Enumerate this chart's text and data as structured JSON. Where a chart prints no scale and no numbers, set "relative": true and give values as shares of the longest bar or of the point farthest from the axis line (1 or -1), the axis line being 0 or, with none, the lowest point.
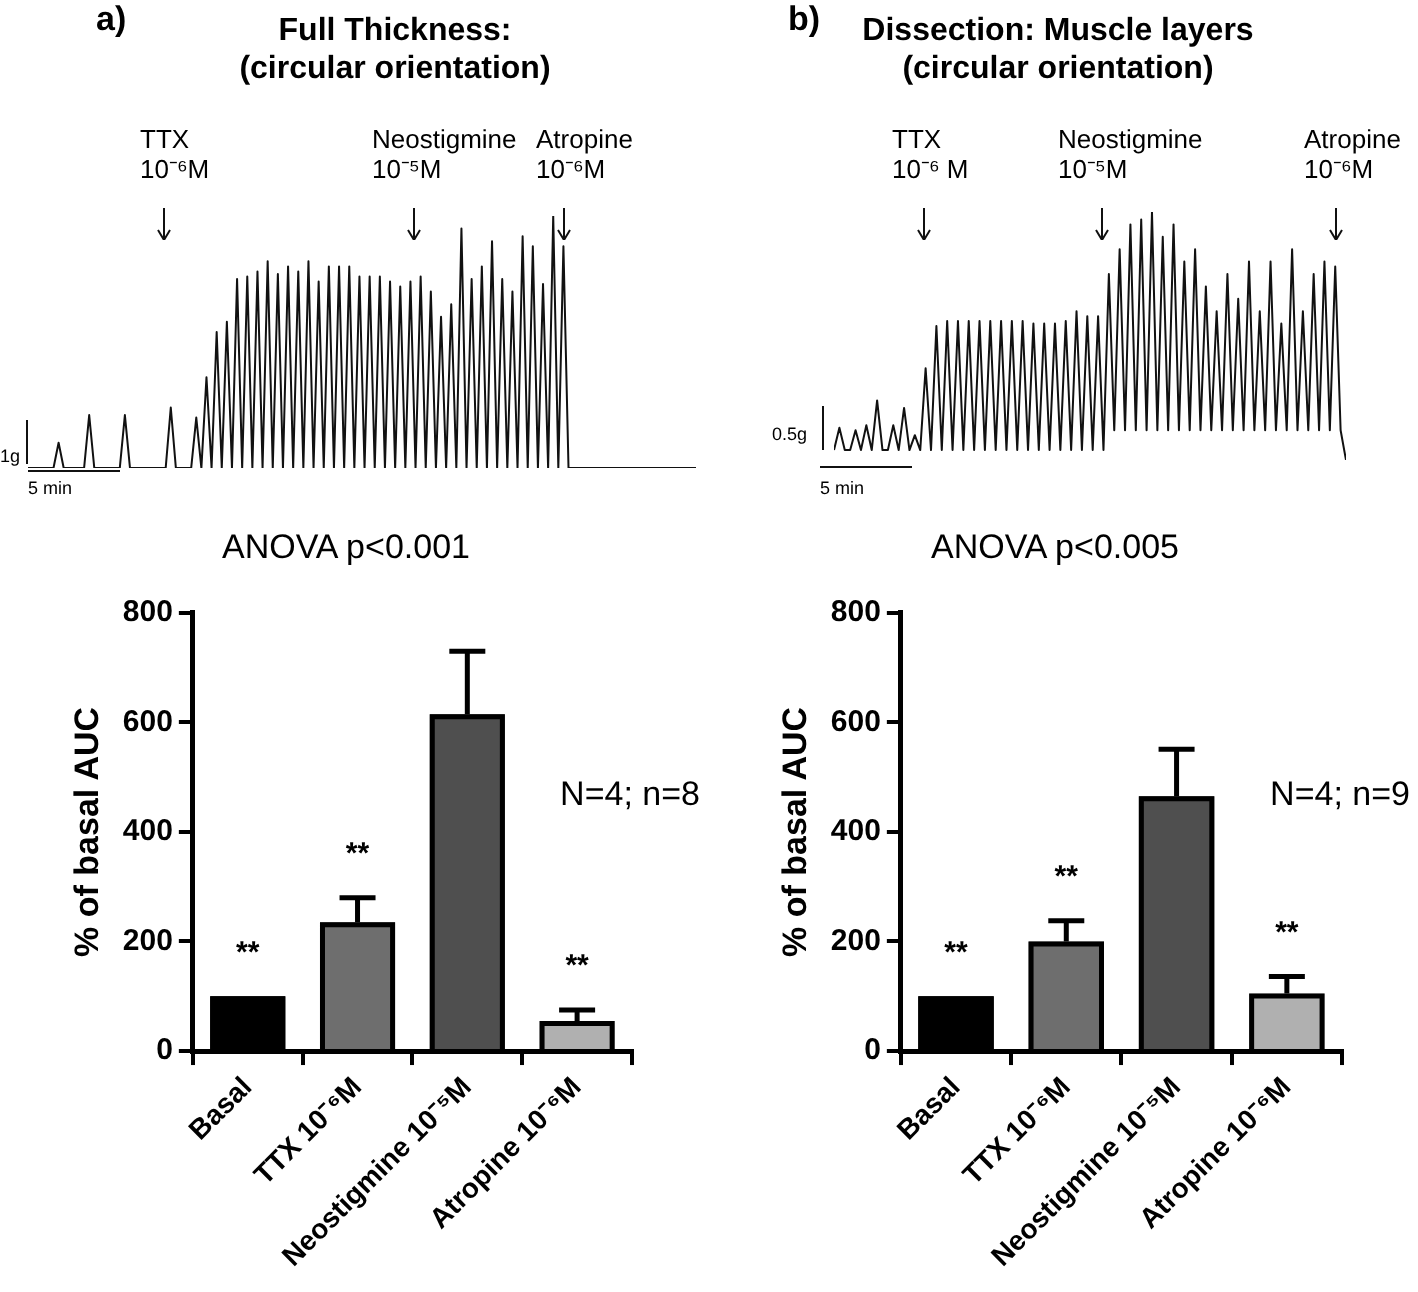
{
  "chart_data": [
    {
      "type": "line",
      "title": "Full Thickness: (circular orientation)",
      "relative": true,
      "tick_labels": false,
      "categories": [
        null,
        null,
        null,
        null,
        null,
        null,
        null,
        null,
        null,
        null,
        null,
        null,
        null,
        null,
        null,
        null,
        null,
        null,
        null,
        null,
        null,
        null,
        null,
        null,
        null,
        null,
        null,
        null,
        null,
        null,
        null,
        null,
        null,
        null,
        null,
        null,
        null,
        null,
        null,
        null,
        null,
        null,
        null,
        null,
        null,
        null,
        null,
        null,
        null,
        null,
        null,
        null,
        null,
        null,
        null,
        null,
        null,
        null,
        null,
        null,
        null,
        null,
        null,
        null,
        null,
        null,
        null,
        null,
        null,
        null,
        null,
        null,
        null,
        null,
        null,
        null,
        null,
        null,
        null,
        null,
        null,
        null,
        null,
        null,
        null,
        null,
        null,
        null,
        null,
        null,
        null,
        null,
        null,
        null,
        null,
        null,
        null,
        null,
        null,
        null,
        null,
        null,
        null,
        null,
        null,
        null,
        null,
        null,
        null,
        null,
        null,
        null,
        null,
        null,
        null,
        null,
        null,
        null,
        null,
        null,
        null,
        null,
        null,
        null,
        null,
        null,
        null,
        null,
        null,
        null,
        null,
        null
      ],
      "series": [
        {
          "color": "#111111",
          "values": [
            0,
            0,
            0,
            0,
            0,
            0,
            0.1,
            0,
            0,
            0,
            0,
            0,
            0.21,
            0,
            0,
            0,
            0,
            0,
            0,
            0.21,
            0,
            0,
            0,
            0,
            0,
            0,
            0,
            0,
            0.24,
            0,
            0,
            0,
            0,
            0.2,
            0,
            0.36,
            0,
            0.54,
            0,
            0.58,
            0,
            0.75,
            0,
            0.76,
            0,
            0.78,
            0,
            0.82,
            0,
            0.77,
            0,
            0.8,
            0,
            0.78,
            0,
            0.82,
            0,
            0.74,
            0,
            0.8,
            0,
            0.8,
            0,
            0.8,
            0,
            0.76,
            0,
            0.76,
            0,
            0.76,
            0,
            0.74,
            0,
            0.72,
            0,
            0.74,
            0,
            0.76,
            0,
            0.7,
            0,
            0.6,
            0,
            0.65,
            0,
            0.95,
            0,
            0.75,
            0,
            0.8,
            0,
            0.9,
            0,
            0.75,
            0,
            0.7,
            0,
            0.92,
            0,
            0.88,
            0,
            0.73,
            0,
            1,
            0,
            0.88,
            0,
            0,
            0,
            0,
            0,
            0,
            0,
            0,
            0,
            0,
            0,
            0,
            0,
            0,
            0,
            0,
            0,
            0,
            0,
            0,
            0,
            0,
            0,
            0,
            0,
            0
          ]
        }
      ],
      "annotations": [
        "a)",
        "TTX 10⁻⁶M",
        "Neostigmine 10⁻⁵M",
        "Atropine 10⁻⁶M",
        "1g",
        "5 min"
      ]
    },
    {
      "type": "line",
      "title": "Dissection: Muscle layers (circular orientation)",
      "relative": true,
      "tick_labels": false,
      "categories": [
        null,
        null,
        null,
        null,
        null,
        null,
        null,
        null,
        null,
        null,
        null,
        null,
        null,
        null,
        null,
        null,
        null,
        null,
        null,
        null,
        null,
        null,
        null,
        null,
        null,
        null,
        null,
        null,
        null,
        null,
        null,
        null,
        null,
        null,
        null,
        null,
        null,
        null,
        null,
        null,
        null,
        null,
        null,
        null,
        null,
        null,
        null,
        null,
        null,
        null,
        null,
        null,
        null,
        null,
        null,
        null,
        null,
        null,
        null,
        null,
        null,
        null,
        null,
        null,
        null,
        null,
        null,
        null,
        null,
        null,
        null,
        null,
        null,
        null,
        null,
        null,
        null,
        null,
        null,
        null,
        null,
        null,
        null,
        null,
        null,
        null,
        null,
        null,
        null,
        null,
        null,
        null,
        null,
        null,
        null,
        null
      ],
      "series": [
        {
          "color": "#111111",
          "values": [
            0.04,
            0.13,
            0.04,
            0.04,
            0.12,
            0.04,
            0.14,
            0.04,
            0.24,
            0.04,
            0.04,
            0.14,
            0.04,
            0.21,
            0.04,
            0.1,
            0.04,
            0.37,
            0.04,
            0.54,
            0.04,
            0.56,
            0.04,
            0.56,
            0.04,
            0.56,
            0.04,
            0.56,
            0.04,
            0.56,
            0.04,
            0.56,
            0.04,
            0.56,
            0.04,
            0.56,
            0.04,
            0.55,
            0.04,
            0.55,
            0.04,
            0.55,
            0.04,
            0.56,
            0.04,
            0.6,
            0.04,
            0.58,
            0.04,
            0.58,
            0.04,
            0.75,
            0.12,
            0.85,
            0.12,
            0.95,
            0.12,
            0.97,
            0.12,
            1,
            0.12,
            0.9,
            0.12,
            0.95,
            0.12,
            0.8,
            0.12,
            0.85,
            0.12,
            0.7,
            0.12,
            0.6,
            0.12,
            0.75,
            0.12,
            0.65,
            0.12,
            0.8,
            0.12,
            0.6,
            0.12,
            0.8,
            0.12,
            0.55,
            0.12,
            0.85,
            0.12,
            0.6,
            0.12,
            0.75,
            0.12,
            0.8,
            0.12,
            0.78,
            0.12,
            0
          ]
        }
      ],
      "annotations": [
        "b)",
        "TTX 10⁻⁶ M",
        "Neostigmine 10⁻⁵M",
        "Atropine 10⁻⁶M",
        "0.5g",
        "5 min"
      ]
    },
    {
      "type": "bar",
      "title": "ANOVA p<0.001",
      "ylabel": "% of basal AUC",
      "categories": [
        "Basal",
        "TTX 10⁻⁶M",
        "Neostigmine 10⁻⁵M",
        "Atropine 10⁻⁶M"
      ],
      "values": [
        100,
        235,
        615,
        55
      ],
      "errors": [
        null,
        45,
        115,
        20
      ],
      "colors": [
        "#000000",
        "#6e6e6e",
        "#4f4f4f",
        "#b0b0b0"
      ],
      "ylim": [
        0,
        800
      ],
      "yticks": [
        0,
        200,
        400,
        600,
        800
      ],
      "annotations": [
        "**",
        "**",
        "**",
        "N=4; n=8"
      ]
    },
    {
      "type": "bar",
      "title": "ANOVA p<0.005",
      "ylabel": "% of basal AUC",
      "categories": [
        "Basal",
        "TTX 10⁻⁶M",
        "Neostigmine 10⁻⁵M",
        "Atropine 10⁻⁶M"
      ],
      "values": [
        100,
        200,
        465,
        105
      ],
      "errors": [
        null,
        38,
        86,
        31
      ],
      "colors": [
        "#000000",
        "#6e6e6e",
        "#4f4f4f",
        "#b0b0b0"
      ],
      "ylim": [
        0,
        800
      ],
      "yticks": [
        0,
        200,
        400,
        600,
        800
      ],
      "annotations": [
        "**",
        "**",
        "**",
        "N=4; n=9"
      ]
    }
  ]
}
